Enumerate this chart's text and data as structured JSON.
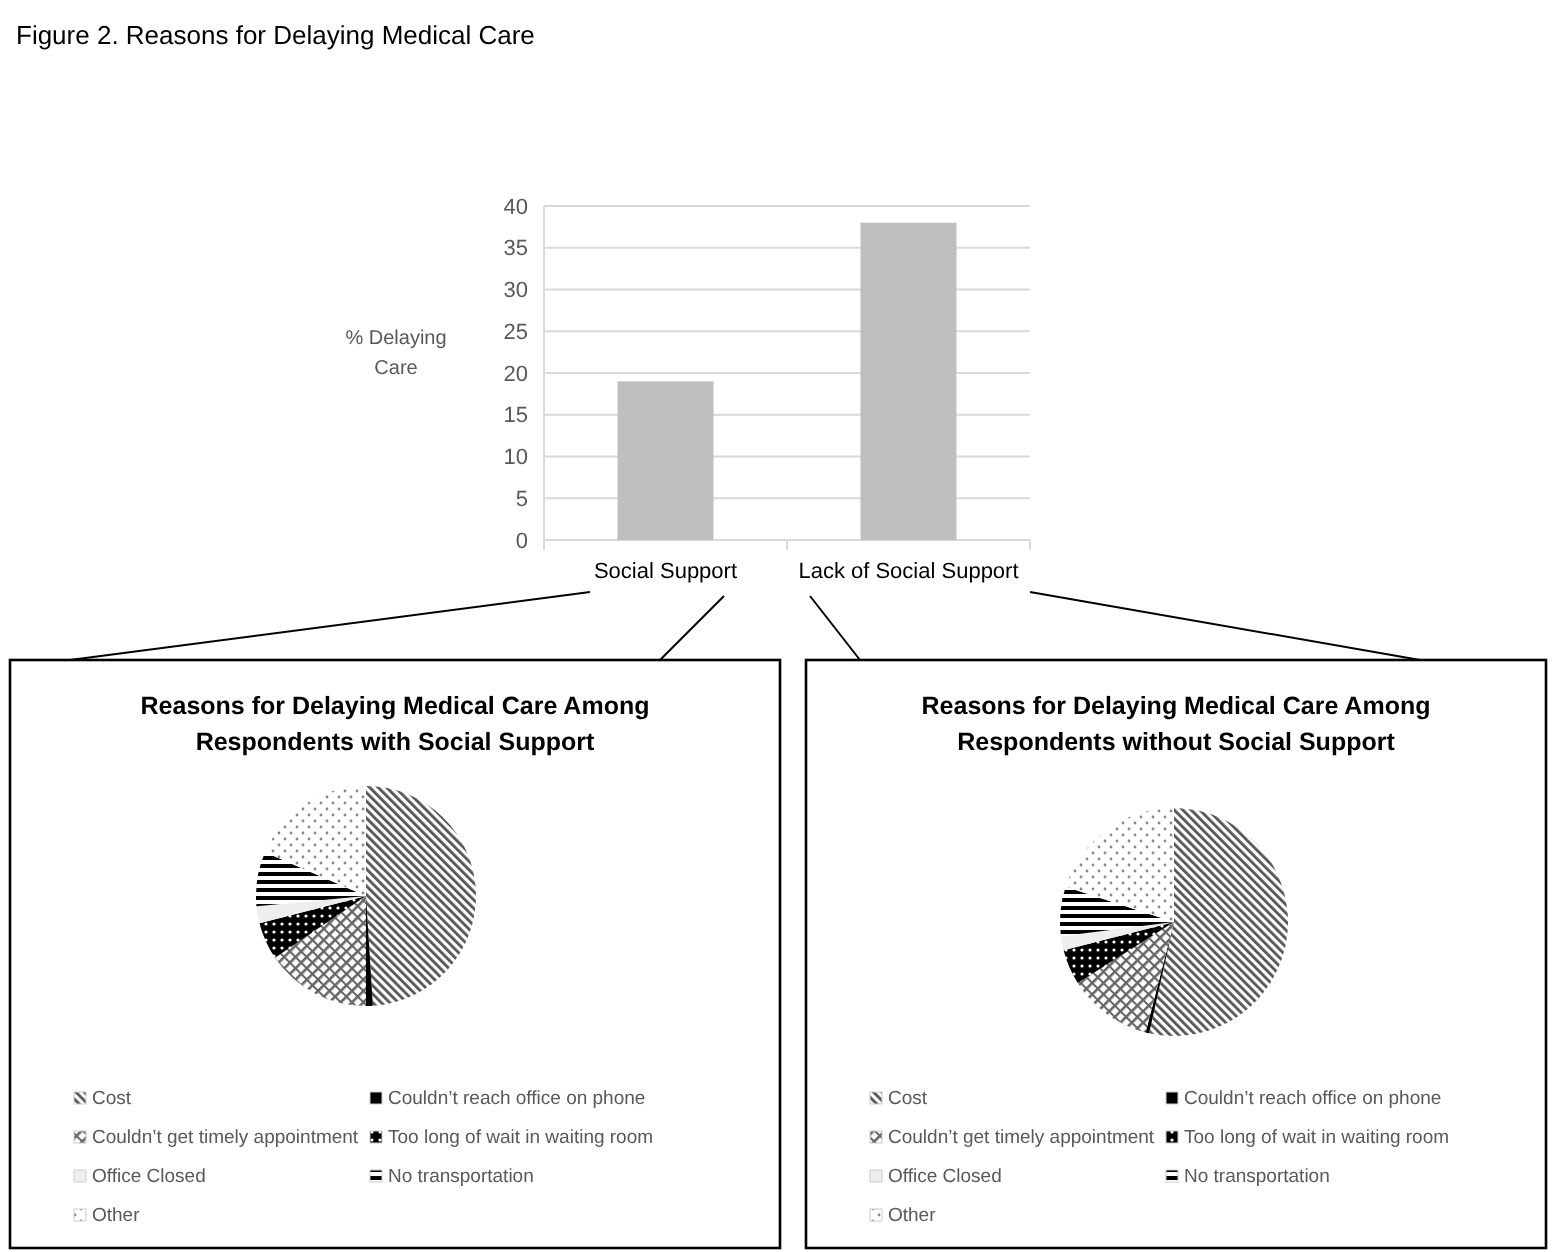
{
  "chart_data": [
    {
      "type": "bar",
      "title": "Figure 2. Reasons for Delaying Medical Care",
      "ylabel": "% Delaying Care",
      "categories": [
        "Social Support",
        "Lack of Social Support"
      ],
      "values": [
        19,
        38
      ],
      "color": "#bfbfbf",
      "ylim": [
        0,
        40
      ],
      "yticks": [
        0,
        5,
        10,
        15,
        20,
        25,
        30,
        35,
        40
      ],
      "grid": "y"
    },
    {
      "type": "pie",
      "title": "Reasons for Delaying Medical Care Among Respondents with Social Support",
      "categories": [
        "Cost",
        "Couldn’t reach office on phone",
        "Couldn’t get timely appointment",
        "Too long of wait in waiting room",
        "Office Closed",
        "No transportation",
        "Other"
      ],
      "values": [
        49,
        1,
        15.5,
        5.5,
        2.5,
        8,
        18.5
      ],
      "colors": [
        "#555555",
        "#000000",
        "#666666",
        "#000000",
        "#eeeeee",
        "#000000",
        "#888888"
      ],
      "legend": "bottom"
    },
    {
      "type": "pie",
      "title": "Reasons for Delaying Medical Care Among Respondents without Social Support",
      "categories": [
        "Cost",
        "Couldn’t reach office on phone",
        "Couldn’t get timely appointment",
        "Too long of wait in waiting room",
        "Office Closed",
        "No transportation",
        "Other"
      ],
      "values": [
        53.5,
        0.5,
        12,
        5,
        2,
        7,
        20
      ],
      "colors": [
        "#555555",
        "#000000",
        "#666666",
        "#000000",
        "#eeeeee",
        "#000000",
        "#888888"
      ],
      "legend": "bottom"
    }
  ]
}
